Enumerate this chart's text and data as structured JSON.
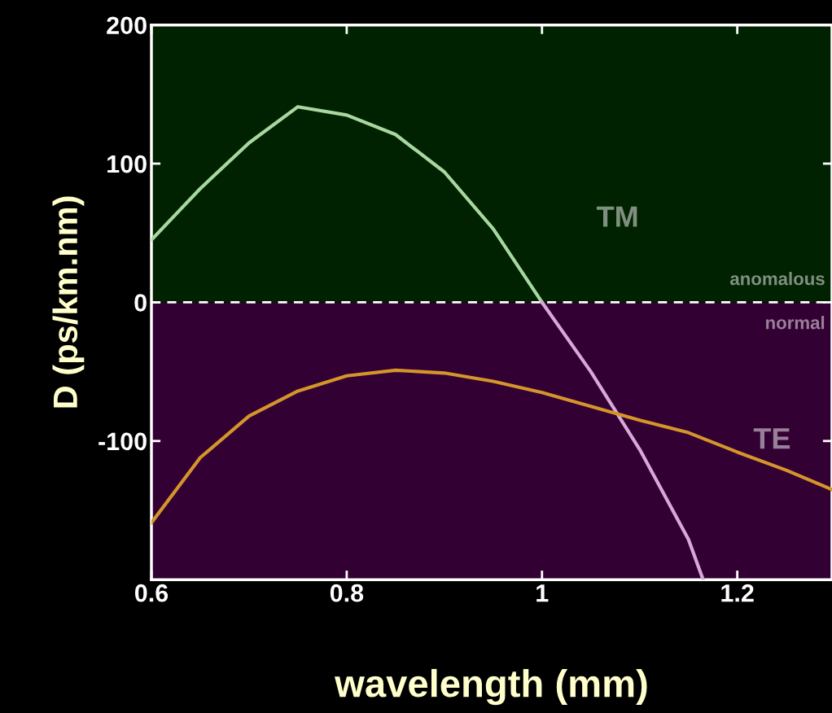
{
  "chart_data": {
    "type": "line",
    "xlabel": "wavelength (mm)",
    "ylabel": "D (ps/km.nm)",
    "xlim": [
      0.6,
      1.297
    ],
    "ylim": [
      -200,
      200
    ],
    "xticks": [
      0.6,
      0.8,
      1,
      1.2
    ],
    "yticks": [
      -100,
      0,
      100,
      200
    ],
    "series": [
      {
        "color": "#a8d8a0",
        "x": [
          0.6,
          0.65,
          0.7,
          0.75,
          0.8,
          0.85,
          0.9,
          0.95,
          1.0
        ],
        "values": [
          45,
          82,
          115,
          141,
          135,
          121,
          94,
          53,
          0
        ]
      },
      {
        "color": "#d8a8d8",
        "x": [
          1.0,
          1.05,
          1.1,
          1.15,
          1.165
        ],
        "values": [
          0,
          -50,
          -106,
          -171,
          -200
        ]
      },
      {
        "color": "#d4952b",
        "x": [
          0.6,
          0.65,
          0.7,
          0.75,
          0.8,
          0.85,
          0.9,
          0.95,
          1.0,
          1.05,
          1.1,
          1.15,
          1.2,
          1.25,
          1.297
        ],
        "values": [
          -159,
          -112,
          -82,
          -64,
          -53,
          -49,
          -51,
          -57,
          -65,
          -75,
          -85,
          -94,
          -108,
          -121,
          -135
        ]
      }
    ],
    "bands": [
      {
        "axis": "y",
        "from": 0,
        "to": 200,
        "label": "anomalous",
        "color": "#002200"
      },
      {
        "axis": "y",
        "from": -200,
        "to": 0,
        "label": "normal",
        "color": "#330033"
      }
    ],
    "ref_lines": [
      {
        "axis": "y",
        "value": 0,
        "color": "#ffffff",
        "line_style": "dashed"
      }
    ],
    "annotations": [
      "TM",
      "TE"
    ],
    "grid": false,
    "legend": false
  }
}
